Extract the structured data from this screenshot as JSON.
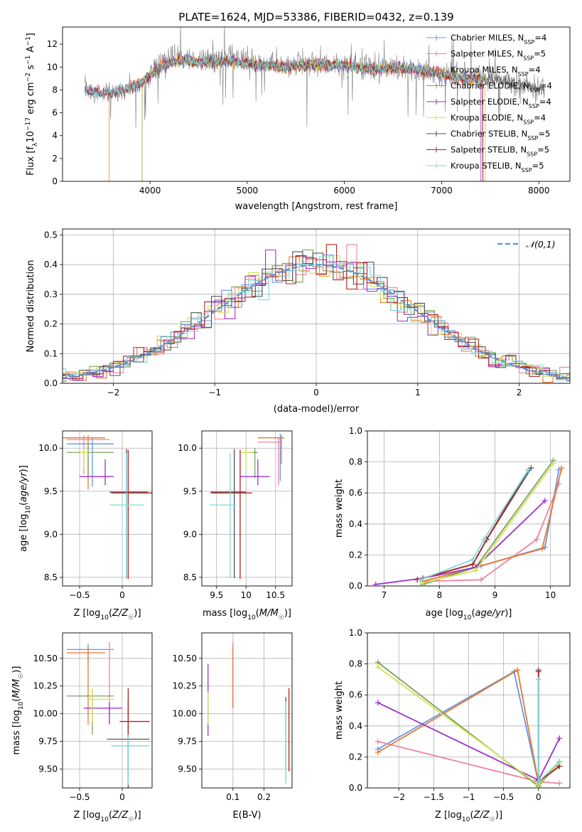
{
  "figure": {
    "title": "PLATE=1624, MJD=53386, FIBERID=0432, z=0.139"
  },
  "series": [
    {
      "name": "Chabrier MILES",
      "nssp": "4",
      "color": "#6495ED"
    },
    {
      "name": "Salpeter MILES",
      "nssp": "5",
      "color": "#EE82A0"
    },
    {
      "name": "Kroupa MILES",
      "nssp": "4",
      "color": "#E9782D"
    },
    {
      "name": "Chabrier ELODIE",
      "nssp": "4",
      "color": "#7BA05B"
    },
    {
      "name": "Salpeter ELODIE",
      "nssp": "4",
      "color": "#9A32CD"
    },
    {
      "name": "Kroupa ELODIE",
      "nssp": "4",
      "color": "#D4E157"
    },
    {
      "name": "Chabrier STELIB",
      "nssp": "5",
      "color": "#555555"
    },
    {
      "name": "Salpeter STELIB",
      "nssp": "5",
      "color": "#B22222"
    },
    {
      "name": "Kroupa STELIB",
      "nssp": "5",
      "color": "#7FDADA"
    }
  ],
  "chart_data": [
    {
      "id": "spectrum",
      "type": "line",
      "title": "PLATE=1624, MJD=53386, FIBERID=0432, z=0.139",
      "xlabel": "wavelength [Angstrom, rest frame]",
      "ylabel": "Flux [f_λ 10^-17 erg cm^-2 s^-1 A^-1]",
      "xlim": [
        3100,
        8320
      ],
      "ylim": [
        0,
        13.5
      ],
      "xticks": [
        4000,
        5000,
        6000,
        7000,
        8000
      ],
      "yticks": [
        0,
        2,
        4,
        6,
        8,
        10,
        12
      ],
      "x": [
        3330,
        3500,
        3700,
        3900,
        4100,
        4300,
        4500,
        4800,
        5100,
        5400,
        5700,
        6000,
        6300,
        6600,
        6900,
        7200,
        7500,
        7800,
        8050
      ],
      "data_flux": [
        8.2,
        7.6,
        7.8,
        8.4,
        10.5,
        11.0,
        10.6,
        10.8,
        10.4,
        10.2,
        10.3,
        10.1,
        10.0,
        9.9,
        9.5,
        9.4,
        9.0,
        8.4,
        8.0
      ],
      "model_flux": [
        8.0,
        7.7,
        7.9,
        8.5,
        10.0,
        10.6,
        10.4,
        10.5,
        10.2,
        10.0,
        10.2,
        10.1,
        9.8,
        9.9,
        9.6,
        9.0,
        0,
        0,
        0
      ],
      "legend": "top-right",
      "grid": false
    },
    {
      "id": "residuals",
      "type": "step",
      "xlabel": "(data-model)/error",
      "ylabel": "Normed distribution",
      "xlim": [
        -2.5,
        2.5
      ],
      "ylim": [
        0,
        0.52
      ],
      "xticks": [
        -2,
        -1,
        0,
        1,
        2
      ],
      "yticks": [
        0.0,
        0.1,
        0.2,
        0.3,
        0.4,
        0.5
      ],
      "reference_curve": {
        "name": "𝒩(0,1)",
        "mean": 0,
        "sigma": 1,
        "color": "#5B8FD4"
      },
      "bin_width": 0.1,
      "grid": true,
      "legend": "top-right"
    },
    {
      "id": "age-vs-Z",
      "type": "errorbar",
      "xlabel": "Z [log10(Z/Z☉)]",
      "ylabel": "age  [log10(age/yr)]",
      "xlim": [
        -0.7,
        0.35
      ],
      "ylim": [
        8.4,
        10.2
      ],
      "xticks": [
        -0.5,
        0.0
      ],
      "yticks": [
        8.5,
        9.0,
        9.5,
        10.0
      ],
      "points": [
        {
          "x": -0.35,
          "y": 10.05,
          "xerr": [
            0.3,
            0.25
          ],
          "yerr": [
            0.5,
            0.08
          ]
        },
        {
          "x": -0.45,
          "y": 10.1,
          "xerr": [
            0.2,
            0.3
          ],
          "yerr": [
            0.4,
            0.05
          ]
        },
        {
          "x": -0.4,
          "y": 10.12,
          "xerr": [
            0.3,
            0.2
          ],
          "yerr": [
            0.6,
            0.03
          ]
        },
        {
          "x": -0.4,
          "y": 9.95,
          "xerr": [
            0.25,
            0.3
          ],
          "yerr": [
            0.3,
            0.1
          ]
        },
        {
          "x": -0.2,
          "y": 9.67,
          "xerr": [
            0.3,
            0.1
          ],
          "yerr": [
            0.1,
            0.2
          ]
        },
        {
          "x": -0.45,
          "y": 9.95,
          "xerr": [
            0.05,
            0.05
          ],
          "yerr": [
            0.2,
            0.05
          ]
        },
        {
          "x": 0.05,
          "y": 9.49,
          "xerr": [
            0.2,
            0.25
          ],
          "yerr": [
            1.0,
            0.5
          ]
        },
        {
          "x": 0.07,
          "y": 9.48,
          "xerr": [
            0.2,
            0.3
          ],
          "yerr": [
            1.0,
            0.5
          ]
        },
        {
          "x": 0.05,
          "y": 9.34,
          "xerr": [
            0.2,
            0.2
          ],
          "yerr": [
            0.85,
            0.6
          ]
        }
      ]
    },
    {
      "id": "age-vs-mass",
      "type": "errorbar",
      "xlabel": "mass [log10(M/M☉)]",
      "xlim": [
        9.25,
        10.78
      ],
      "ylim": [
        8.4,
        10.2
      ],
      "xticks": [
        9.5,
        10.0,
        10.5
      ],
      "yticks": [
        8.5,
        9.0,
        9.5,
        10.0
      ],
      "points": [
        {
          "x": 10.58,
          "y": 10.12,
          "xerr": [
            0.1,
            0.05
          ],
          "yerr": [
            0.5,
            0.05
          ]
        },
        {
          "x": 10.55,
          "y": 10.07,
          "xerr": [
            0.35,
            0.05
          ],
          "yerr": [
            0.5,
            0.05
          ]
        },
        {
          "x": 10.6,
          "y": 10.12,
          "xerr": [
            0.4,
            0.05
          ],
          "yerr": [
            0.3,
            0.03
          ]
        },
        {
          "x": 10.15,
          "y": 9.95,
          "xerr": [
            0.2,
            0.05
          ],
          "yerr": [
            0.3,
            0.05
          ]
        },
        {
          "x": 10.2,
          "y": 9.67,
          "xerr": [
            0.3,
            0.2
          ],
          "yerr": [
            0.1,
            0.2
          ]
        },
        {
          "x": 10.0,
          "y": 9.95,
          "xerr": [
            0.1,
            0.1
          ],
          "yerr": [
            0.2,
            0.05
          ]
        },
        {
          "x": 9.8,
          "y": 9.49,
          "xerr": [
            0.4,
            0.2
          ],
          "yerr": [
            1.0,
            0.5
          ]
        },
        {
          "x": 9.9,
          "y": 9.48,
          "xerr": [
            0.5,
            0.2
          ],
          "yerr": [
            1.0,
            0.5
          ]
        },
        {
          "x": 9.73,
          "y": 9.34,
          "xerr": [
            0.35,
            0.1
          ],
          "yerr": [
            0.85,
            0.6
          ]
        }
      ]
    },
    {
      "id": "weight-vs-age",
      "type": "line",
      "xlabel": "age  [log10(age/yr)]",
      "ylabel": "mass weight",
      "xlim": [
        6.7,
        10.35
      ],
      "ylim": [
        0,
        1.0
      ],
      "xticks": [
        7,
        8,
        9,
        10
      ],
      "yticks": [
        0.0,
        0.2,
        0.4,
        0.6,
        0.8,
        1.0
      ],
      "grid": true,
      "series": [
        {
          "x": [
            7.7,
            8.75,
            9.9,
            10.15
          ],
          "y": [
            0.03,
            0.13,
            0.25,
            0.75
          ]
        },
        {
          "x": [
            7.7,
            8.75,
            9.75,
            10.15
          ],
          "y": [
            0.03,
            0.04,
            0.3,
            0.66
          ]
        },
        {
          "x": [
            7.7,
            8.65,
            9.85,
            10.2
          ],
          "y": [
            0.03,
            0.12,
            0.24,
            0.76
          ]
        },
        {
          "x": [
            7.7,
            8.65,
            10.05
          ],
          "y": [
            0.01,
            0.12,
            0.81
          ]
        },
        {
          "x": [
            6.85,
            7.7,
            8.65,
            9.9
          ],
          "y": [
            0.01,
            0.05,
            0.12,
            0.55
          ]
        },
        {
          "x": [
            7.7,
            8.65,
            10.05
          ],
          "y": [
            0.02,
            0.1,
            0.79
          ]
        },
        {
          "x": [
            7.6,
            8.6,
            8.85,
            9.65
          ],
          "y": [
            0.04,
            0.14,
            0.3,
            0.76
          ]
        },
        {
          "x": [
            7.6,
            8.6,
            8.85,
            9.6
          ],
          "y": [
            0.04,
            0.14,
            0.3,
            0.75
          ]
        },
        {
          "x": [
            7.65,
            8.6,
            8.8,
            9.6
          ],
          "y": [
            0.04,
            0.17,
            0.3,
            0.75
          ]
        }
      ]
    },
    {
      "id": "mass-vs-Z",
      "type": "errorbar",
      "xlabel": "Z [log10(Z/Z☉)]",
      "ylabel": "mass [log10(M/M☉)]",
      "xlim": [
        -0.7,
        0.35
      ],
      "ylim": [
        9.33,
        10.73
      ],
      "xticks": [
        -0.5,
        0.0
      ],
      "yticks": [
        9.5,
        9.75,
        10.0,
        10.25,
        10.5
      ],
      "points": [
        {
          "x": -0.4,
          "y": 10.58,
          "xerr": [
            0.25,
            0.3
          ],
          "yerr": [
            0.1,
            0.05
          ]
        },
        {
          "x": -0.15,
          "y": 10.05,
          "xerr": [
            0.3,
            0.15
          ],
          "yerr": [
            0.15,
            0.6
          ]
        },
        {
          "x": -0.4,
          "y": 10.55,
          "xerr": [
            0.25,
            0.2
          ],
          "yerr": [
            0.65,
            0.05
          ]
        },
        {
          "x": -0.35,
          "y": 10.16,
          "xerr": [
            0.3,
            0.25
          ],
          "yerr": [
            0.35,
            0.05
          ]
        },
        {
          "x": -0.15,
          "y": 10.05,
          "xerr": [
            0.3,
            0.15
          ],
          "yerr": [
            0.14,
            0.05
          ]
        },
        {
          "x": -0.35,
          "y": 10.13,
          "xerr": [
            0.05,
            0.25
          ],
          "yerr": [
            0.2,
            0.1
          ]
        },
        {
          "x": 0.07,
          "y": 9.77,
          "xerr": [
            0.25,
            0.25
          ],
          "yerr": [
            0.45,
            0.35
          ]
        },
        {
          "x": 0.07,
          "y": 9.93,
          "xerr": [
            0.1,
            0.25
          ],
          "yerr": [
            0.5,
            0.3
          ]
        },
        {
          "x": 0.07,
          "y": 9.71,
          "xerr": [
            0.2,
            0.25
          ],
          "yerr": [
            0.35,
            0.1
          ]
        }
      ]
    },
    {
      "id": "mass-vs-ebv",
      "type": "errorbar",
      "xlabel": "E(B-V)",
      "xlim": [
        0.0,
        0.29
      ],
      "ylim": [
        9.33,
        10.73
      ],
      "xticks": [
        0.1,
        0.2
      ],
      "yticks": [
        9.5,
        9.75,
        10.0,
        10.25,
        10.5
      ],
      "points": [
        {
          "x": 0.1,
          "y": 10.58,
          "yerr": [
            0.5,
            0.05
          ]
        },
        {
          "x": 0.1,
          "y": 10.55,
          "yerr": [
            0.5,
            0.1
          ]
        },
        {
          "x": 0.1,
          "y": 10.55,
          "yerr": [
            0.5,
            0.05
          ]
        },
        {
          "x": 0.27,
          "y": 9.95,
          "yerr": [
            0.55,
            0.15
          ]
        },
        {
          "x": 0.02,
          "y": 10.1,
          "yerr": [
            0.3,
            0.35
          ]
        },
        {
          "x": 0.02,
          "y": 10.0,
          "yerr": [
            0.1,
            0.2
          ]
        },
        {
          "x": 0.27,
          "y": 9.9,
          "yerr": [
            0.4,
            0.25
          ]
        },
        {
          "x": 0.28,
          "y": 9.93,
          "yerr": [
            0.45,
            0.3
          ]
        },
        {
          "x": 0.27,
          "y": 9.71,
          "yerr": [
            0.35,
            0.4
          ]
        }
      ]
    },
    {
      "id": "weight-vs-Z",
      "type": "line",
      "xlabel": "Z [log10(Z/Z☉)]",
      "ylabel": "mass weight",
      "xlim": [
        -2.45,
        0.45
      ],
      "ylim": [
        0,
        1.0
      ],
      "xticks": [
        -2.0,
        -1.5,
        -1.0,
        -0.5,
        0.0
      ],
      "yticks": [
        0.0,
        0.2,
        0.4,
        0.6,
        0.8,
        1.0
      ],
      "grid": true,
      "series": [
        {
          "x": [
            -2.3,
            -0.35,
            0.0
          ],
          "y": [
            0.25,
            0.75,
            0.03
          ]
        },
        {
          "x": [
            -2.3,
            0.0,
            0.3
          ],
          "y": [
            0.3,
            0.04,
            0.03
          ]
        },
        {
          "x": [
            -2.3,
            -0.3,
            0.0
          ],
          "y": [
            0.23,
            0.76,
            0.03
          ]
        },
        {
          "x": [
            -2.3,
            0.0,
            0.3
          ],
          "y": [
            0.81,
            0.01,
            0.17
          ]
        },
        {
          "x": [
            -2.3,
            0.0,
            0.3
          ],
          "y": [
            0.55,
            0.05,
            0.32
          ]
        },
        {
          "x": [
            -2.3,
            0.0,
            0.3
          ],
          "y": [
            0.78,
            0.02,
            0.16
          ]
        },
        {
          "x": [
            0.0,
            0.0,
            0.3
          ],
          "y": [
            0.76,
            0.04,
            0.14
          ]
        },
        {
          "x": [
            0.0,
            0.0,
            0.3
          ],
          "y": [
            0.75,
            0.04,
            0.14
          ]
        },
        {
          "x": [
            0.0,
            0.0,
            0.3
          ],
          "y": [
            0.7,
            0.04,
            0.17
          ]
        }
      ]
    }
  ]
}
